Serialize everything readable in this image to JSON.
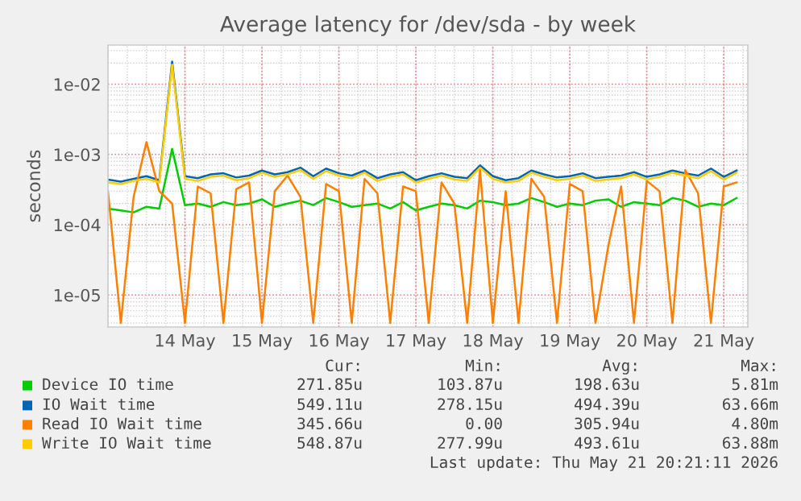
{
  "chart_data": {
    "type": "line",
    "title": "Average latency for /dev/sda - by week",
    "ylabel": "seconds",
    "log": true,
    "grid": true,
    "legend": "bottom",
    "ylim": [
      3.5e-06,
      0.036
    ],
    "yticks": [
      {
        "value": 1e-05,
        "label": "1e-05"
      },
      {
        "value": 0.0001,
        "label": "1e-04"
      },
      {
        "value": 0.001,
        "label": "1e-03"
      },
      {
        "value": 0.01,
        "label": "1e-02"
      }
    ],
    "xlim": [
      "2026-05-13T00:00",
      "2026-05-21T07:30"
    ],
    "xticks": [
      {
        "value": "2026-05-14",
        "label": "14 May"
      },
      {
        "value": "2026-05-15",
        "label": "15 May"
      },
      {
        "value": "2026-05-16",
        "label": "16 May"
      },
      {
        "value": "2026-05-17",
        "label": "17 May"
      },
      {
        "value": "2026-05-18",
        "label": "18 May"
      },
      {
        "value": "2026-05-19",
        "label": "19 May"
      },
      {
        "value": "2026-05-20",
        "label": "20 May"
      },
      {
        "value": "2026-05-21",
        "label": "21 May"
      }
    ],
    "x": [
      "2026-05-13T00:00",
      "2026-05-13T04:00",
      "2026-05-13T08:00",
      "2026-05-13T12:00",
      "2026-05-13T16:00",
      "2026-05-13T20:00",
      "2026-05-14T00:00",
      "2026-05-14T04:00",
      "2026-05-14T08:00",
      "2026-05-14T12:00",
      "2026-05-14T16:00",
      "2026-05-14T20:00",
      "2026-05-15T00:00",
      "2026-05-15T04:00",
      "2026-05-15T08:00",
      "2026-05-15T12:00",
      "2026-05-15T16:00",
      "2026-05-15T20:00",
      "2026-05-16T00:00",
      "2026-05-16T04:00",
      "2026-05-16T08:00",
      "2026-05-16T12:00",
      "2026-05-16T16:00",
      "2026-05-16T20:00",
      "2026-05-17T00:00",
      "2026-05-17T04:00",
      "2026-05-17T08:00",
      "2026-05-17T12:00",
      "2026-05-17T16:00",
      "2026-05-17T20:00",
      "2026-05-18T00:00",
      "2026-05-18T04:00",
      "2026-05-18T08:00",
      "2026-05-18T12:00",
      "2026-05-18T16:00",
      "2026-05-18T20:00",
      "2026-05-19T00:00",
      "2026-05-19T04:00",
      "2026-05-19T08:00",
      "2026-05-19T12:00",
      "2026-05-19T16:00",
      "2026-05-19T20:00",
      "2026-05-20T00:00",
      "2026-05-20T04:00",
      "2026-05-20T08:00",
      "2026-05-20T12:00",
      "2026-05-20T16:00",
      "2026-05-20T20:00",
      "2026-05-21T00:00",
      "2026-05-21T04:00"
    ],
    "series": [
      {
        "name": "Device IO time",
        "color": "#00cc00",
        "values": [
          0.00017,
          0.00016,
          0.00015,
          0.00018,
          0.00017,
          0.0012,
          0.00019,
          0.0002,
          0.00018,
          0.00021,
          0.00019,
          0.0002,
          0.00023,
          0.00018,
          0.0002,
          0.00022,
          0.00019,
          0.00024,
          0.00021,
          0.00018,
          0.00019,
          0.0002,
          0.00017,
          0.00021,
          0.00016,
          0.00018,
          0.0002,
          0.00019,
          0.00017,
          0.00022,
          0.00021,
          0.00019,
          0.0002,
          0.00024,
          0.00021,
          0.00018,
          0.0002,
          0.00019,
          0.00022,
          0.00023,
          0.00018,
          0.00021,
          0.0002,
          0.00019,
          0.00024,
          0.00022,
          0.00018,
          0.0002,
          0.00019,
          0.00024
        ]
      },
      {
        "name": "IO Wait time",
        "color": "#0066b3",
        "values": [
          0.00044,
          0.00041,
          0.00045,
          0.00049,
          0.00043,
          0.021,
          0.00049,
          0.00046,
          0.00052,
          0.00054,
          0.00047,
          0.0005,
          0.00059,
          0.00052,
          0.00056,
          0.00065,
          0.00049,
          0.00063,
          0.00054,
          0.0005,
          0.00059,
          0.00046,
          0.00052,
          0.00056,
          0.00043,
          0.00049,
          0.00054,
          0.00048,
          0.00046,
          0.0007,
          0.00049,
          0.00043,
          0.00046,
          0.00059,
          0.00052,
          0.00047,
          0.00049,
          0.00054,
          0.00046,
          0.00048,
          0.0005,
          0.00056,
          0.00048,
          0.00052,
          0.00059,
          0.00054,
          0.0005,
          0.00063,
          0.00048,
          0.00059
        ]
      },
      {
        "name": "Read IO Wait time",
        "color": "#ff8000",
        "values": [
          0.0003,
          4e-06,
          0.00025,
          0.0015,
          0.0003,
          0.0002,
          4e-06,
          0.00035,
          0.00028,
          4e-06,
          0.00032,
          0.0004,
          4e-06,
          0.0003,
          0.0005,
          0.00025,
          4e-06,
          0.00038,
          0.0003,
          4e-06,
          0.00045,
          0.00028,
          4e-06,
          0.00035,
          0.0003,
          4e-06,
          0.0004,
          0.0002,
          4e-06,
          0.0006,
          4e-06,
          0.0003,
          4e-06,
          0.00045,
          0.00025,
          4e-06,
          0.00038,
          0.0003,
          4e-06,
          5e-05,
          0.00035,
          4e-06,
          0.00042,
          0.0003,
          4e-06,
          0.0006,
          0.00028,
          4e-06,
          0.00035,
          0.0004
        ]
      },
      {
        "name": "Write IO Wait time",
        "color": "#ffcc00",
        "values": [
          0.0004,
          0.00038,
          0.00042,
          0.00045,
          0.0004,
          0.019,
          0.00045,
          0.00042,
          0.00048,
          0.0005,
          0.00043,
          0.00046,
          0.00055,
          0.00048,
          0.00052,
          0.0006,
          0.00045,
          0.00058,
          0.0005,
          0.00046,
          0.00055,
          0.00042,
          0.00048,
          0.00052,
          0.0004,
          0.00045,
          0.0005,
          0.00044,
          0.00042,
          0.00065,
          0.00045,
          0.0004,
          0.00042,
          0.00055,
          0.00048,
          0.00043,
          0.00045,
          0.0005,
          0.00042,
          0.00044,
          0.00046,
          0.00052,
          0.00044,
          0.00048,
          0.00055,
          0.0005,
          0.00046,
          0.00058,
          0.00044,
          0.00055
        ]
      }
    ],
    "annotations": [
      "Cur:",
      "Min:",
      "Avg:",
      "Max:",
      "271.85u",
      "103.87u",
      "198.63u",
      "5.81m",
      "549.11u",
      "278.15u",
      "494.39u",
      "63.66m",
      "345.66u",
      "0.00",
      "305.94u",
      "4.80m",
      "548.87u",
      "277.99u",
      "493.61u",
      "63.88m",
      "Last update: Thu May 21 20:21:11 2026"
    ]
  }
}
